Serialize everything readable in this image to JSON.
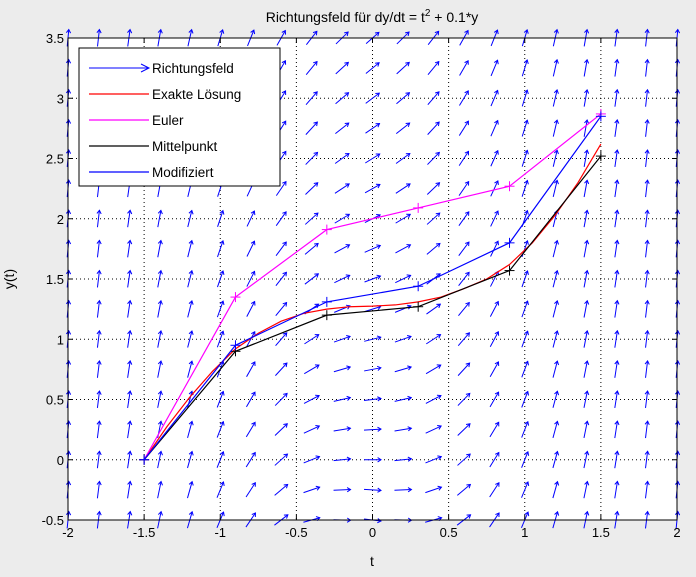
{
  "chart_data": {
    "type": "line",
    "title": "Richtungsfeld für dy/dt = t^2 + 0.1*y",
    "title_parts": {
      "pre": "Richtungsfeld für dy/dt = t",
      "sup": "2",
      "post": " + 0.1*y"
    },
    "xlabel": "t",
    "ylabel": "y(t)",
    "xlim": [
      -2,
      2
    ],
    "ylim": [
      -0.5,
      3.5
    ],
    "xticks": [
      -2,
      -1.5,
      -1,
      -0.5,
      0,
      0.5,
      1,
      1.5,
      2
    ],
    "xtick_labels": [
      "-2",
      "-1.5",
      "-1",
      "-0.5",
      "0",
      "0.5",
      "1",
      "1.5",
      "2"
    ],
    "yticks": [
      -0.5,
      0,
      0.5,
      1,
      1.5,
      2,
      2.5,
      3,
      3.5
    ],
    "ytick_labels": [
      "-0.5",
      "0",
      "0.5",
      "1",
      "1.5",
      "2",
      "2.5",
      "3",
      "3.5"
    ],
    "grid": true,
    "grid_style": "dotted",
    "legend_position": "top-left",
    "legend": [
      {
        "label": "Richtungsfeld",
        "color": "#0000ff",
        "style": "arrow"
      },
      {
        "label": "Exakte Lösung",
        "color": "#ff0000",
        "style": "line"
      },
      {
        "label": "Euler",
        "color": "#ff00ff",
        "style": "line"
      },
      {
        "label": "Mittelpunkt",
        "color": "#000000",
        "style": "line"
      },
      {
        "label": "Modifiziert",
        "color": "#0000ff",
        "style": "line"
      }
    ],
    "direction_field": {
      "equation": "dy/dt = t^2 + 0.1*y",
      "t_values": [
        -2,
        -1.8,
        -1.6,
        -1.4,
        -1.2,
        -1,
        -0.8,
        -0.6,
        -0.4,
        -0.2,
        0,
        0.2,
        0.4,
        0.6,
        0.8,
        1,
        1.2,
        1.4,
        1.6,
        1.8,
        2
      ],
      "y_values": [
        -0.5,
        -0.25,
        0,
        0.25,
        0.5,
        0.75,
        1,
        1.25,
        1.5,
        1.75,
        2,
        2.25,
        2.5,
        2.75,
        3,
        3.25,
        3.5
      ],
      "color": "#0000ff"
    },
    "series": [
      {
        "name": "Exakte Lösung",
        "color": "#ff0000",
        "x": [
          -1.5,
          -1.35,
          -1.2,
          -1.05,
          -0.9,
          -0.75,
          -0.6,
          -0.45,
          -0.3,
          -0.15,
          0,
          0.15,
          0.3,
          0.45,
          0.6,
          0.75,
          0.9,
          1.05,
          1.2,
          1.35,
          1.5
        ],
        "y": [
          0,
          0.275,
          0.52,
          0.735,
          0.92,
          1.05,
          1.15,
          1.215,
          1.25,
          1.27,
          1.275,
          1.285,
          1.31,
          1.35,
          1.42,
          1.5,
          1.62,
          1.8,
          2.03,
          2.3,
          2.62
        ],
        "markers": false
      },
      {
        "name": "Euler",
        "color": "#ff00ff",
        "x": [
          -1.5,
          -0.9,
          -0.3,
          0.3,
          0.9,
          1.5
        ],
        "y": [
          0,
          1.35,
          1.91,
          2.09,
          2.27,
          2.87
        ],
        "markers": "plus"
      },
      {
        "name": "Mittelpunkt",
        "color": "#000000",
        "x": [
          -1.5,
          -0.9,
          -0.3,
          0.3,
          0.9,
          1.5
        ],
        "y": [
          0,
          0.9,
          1.2,
          1.27,
          1.57,
          2.52
        ],
        "markers": "plus"
      },
      {
        "name": "Modifiziert",
        "color": "#0000ff",
        "x": [
          -1.5,
          -0.9,
          -0.3,
          0.3,
          0.9,
          1.5
        ],
        "y": [
          0,
          0.95,
          1.31,
          1.44,
          1.8,
          2.85
        ],
        "markers": "plus"
      }
    ]
  }
}
